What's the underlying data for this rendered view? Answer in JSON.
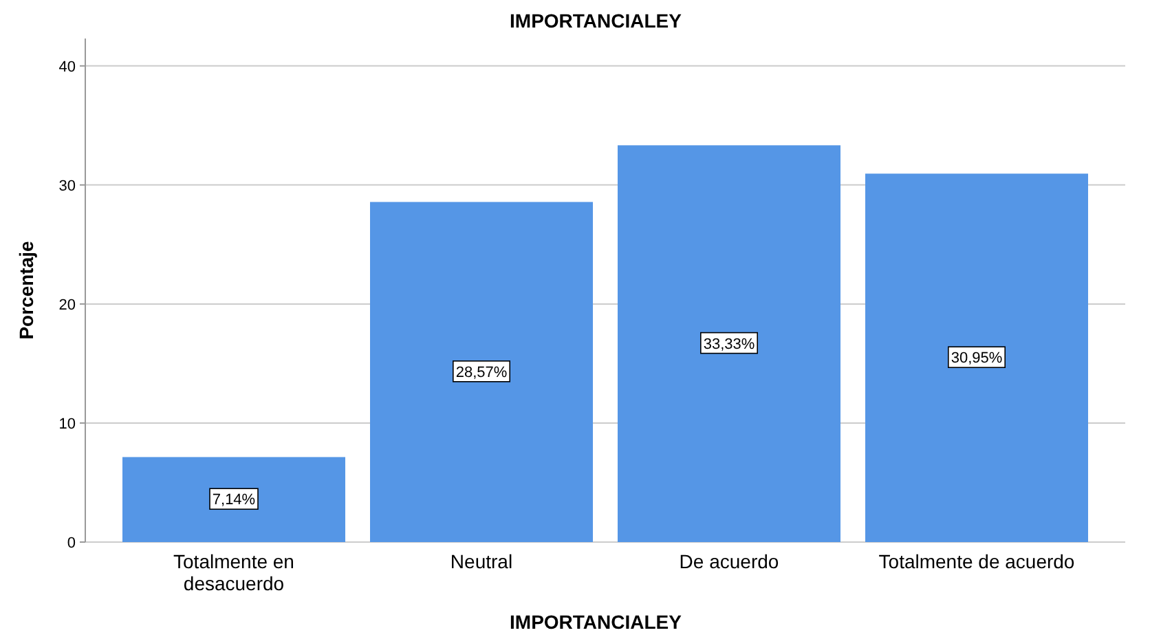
{
  "chart_data": {
    "type": "bar",
    "title": "IMPORTANCIALEY",
    "xlabel": "IMPORTANCIALEY",
    "ylabel": "Porcentaje",
    "categories": [
      "Totalmente en desacuerdo",
      "Neutral",
      "De acuerdo",
      "Totalmente de acuerdo"
    ],
    "values": [
      7.14,
      28.57,
      33.33,
      30.95
    ],
    "value_labels": [
      "7,14%",
      "28,57%",
      "33,33%",
      "30,95%"
    ],
    "color": "#5596e6",
    "ylim": [
      0,
      42.3
    ],
    "yticks": [
      0,
      10,
      20,
      30,
      40
    ],
    "grid": "y"
  }
}
